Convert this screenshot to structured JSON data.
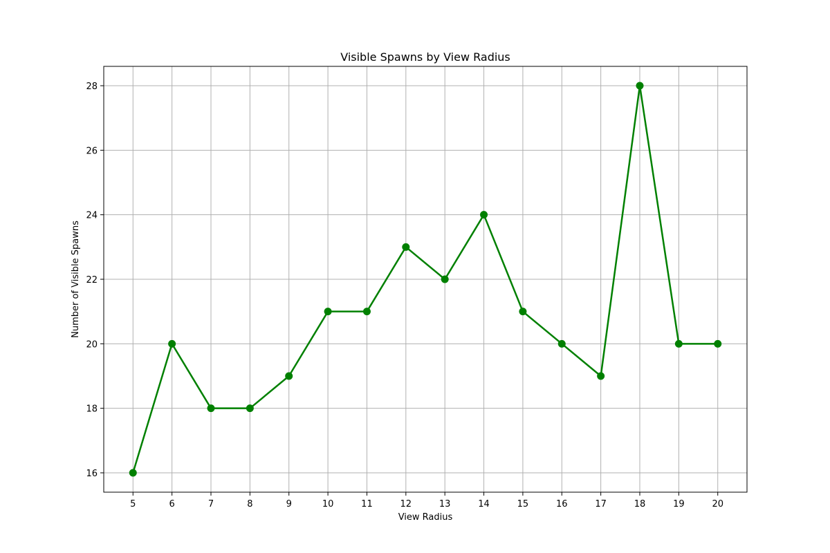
{
  "chart_data": {
    "type": "line",
    "title": "Visible Spawns by View Radius",
    "xlabel": "View Radius",
    "ylabel": "Number of Visible Spawns",
    "x": [
      5,
      6,
      7,
      8,
      9,
      10,
      11,
      12,
      13,
      14,
      15,
      16,
      17,
      18,
      19,
      20
    ],
    "series": [
      {
        "values": [
          16,
          20,
          18,
          18,
          19,
          21,
          21,
          23,
          22,
          24,
          21,
          20,
          19,
          28,
          20,
          20
        ]
      }
    ],
    "xlim": [
      4.25,
      20.75
    ],
    "ylim": [
      15.4,
      28.6
    ],
    "xticks": [
      5,
      6,
      7,
      8,
      9,
      10,
      11,
      12,
      13,
      14,
      15,
      16,
      17,
      18,
      19,
      20
    ],
    "yticks": [
      16,
      18,
      20,
      22,
      24,
      26,
      28
    ],
    "grid": true,
    "marker": "circle",
    "line_color": "#008000",
    "grid_color": "#b0b0b0",
    "axes_color": "#000000"
  }
}
